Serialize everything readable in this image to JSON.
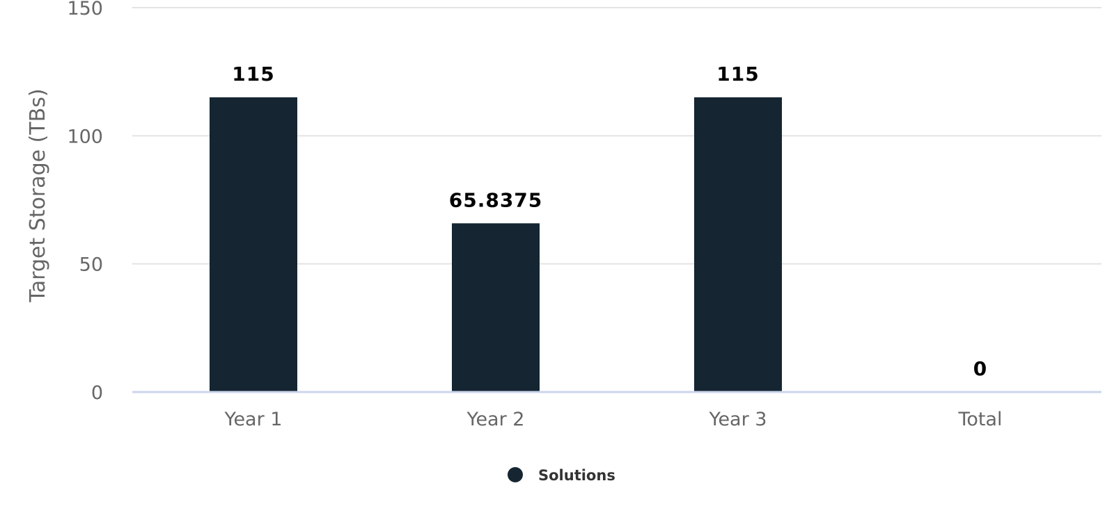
{
  "chart_data": {
    "type": "bar",
    "categories": [
      "Year 1",
      "Year 2",
      "Year 3",
      "Total"
    ],
    "series": [
      {
        "name": "Solutions",
        "values": [
          115,
          65.8375,
          115,
          0
        ],
        "color": "#152532"
      }
    ],
    "data_labels": [
      "115",
      "65.8375",
      "115",
      "0"
    ],
    "y_ticks": [
      "0",
      "50",
      "100",
      "150"
    ],
    "xlabel": "",
    "ylabel": "Target Storage (TBs)",
    "ylim": [
      0,
      150
    ],
    "grid": true,
    "legend": {
      "position": "bottom-center",
      "entries": [
        "Solutions"
      ]
    }
  }
}
